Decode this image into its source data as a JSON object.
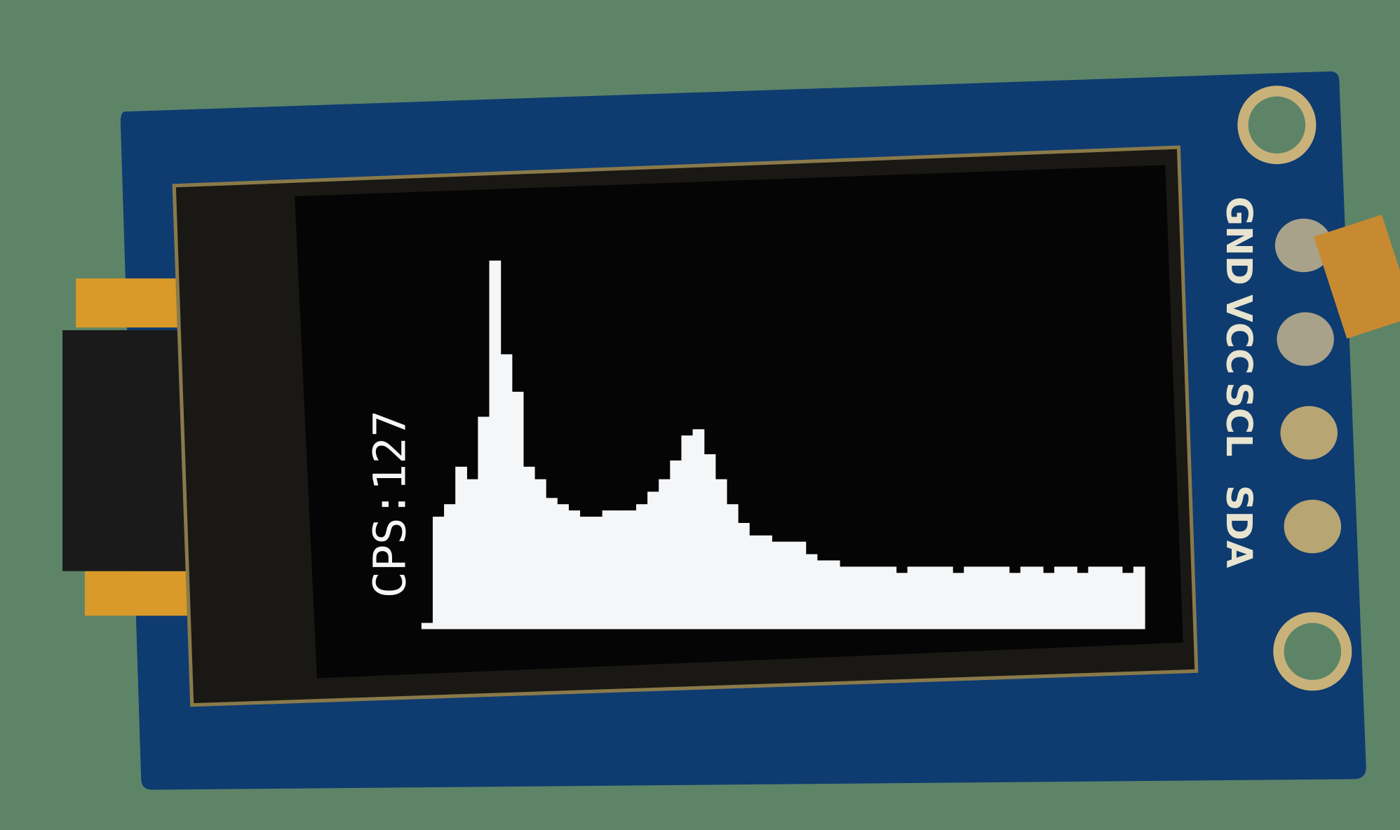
{
  "chart_data": {
    "type": "bar",
    "annotation": "CPS:127",
    "values": [
      1,
      18,
      20,
      26,
      24,
      34,
      59,
      44,
      38,
      26,
      24,
      21,
      20,
      19,
      18,
      18,
      19,
      19,
      19,
      20,
      22,
      24,
      27,
      31,
      32,
      28,
      24,
      20,
      17,
      15,
      15,
      14,
      14,
      14,
      12,
      11,
      11,
      10,
      10,
      10,
      10,
      10,
      9,
      10,
      10,
      10,
      10,
      9,
      10,
      10,
      10,
      10,
      9,
      10,
      10,
      9,
      10,
      10,
      9,
      10,
      10,
      10,
      9,
      10
    ],
    "color": "#f4f6f8",
    "ylim": [
      0,
      64
    ]
  },
  "board": {
    "pins": [
      "GND",
      "VCC",
      "SCL",
      "SDA"
    ]
  }
}
